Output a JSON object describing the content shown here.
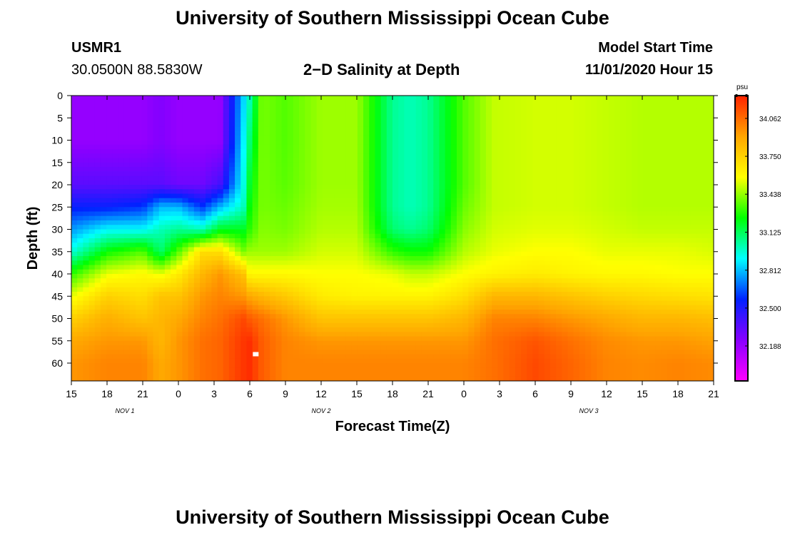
{
  "header": {
    "title": "University of Southern Mississippi Ocean Cube",
    "station_id": "USMR1",
    "coords": "30.0500N 88.5830W",
    "subtitle": "2−D Salinity at Depth",
    "model_start_label": "Model Start Time",
    "model_start_value": "11/01/2020 Hour 15"
  },
  "footer": {
    "title": "University of Southern Mississippi Ocean Cube"
  },
  "chart_data": {
    "type": "heatmap",
    "title": "2−D Salinity at Depth",
    "xlabel": "Forecast Time(Z)",
    "ylabel": "Depth (ft)",
    "x_range_hours": [
      0,
      54
    ],
    "x_tick_labels": [
      "15",
      "18",
      "21",
      "0",
      "3",
      "6",
      "9",
      "12",
      "15",
      "18",
      "21",
      "0",
      "3",
      "6",
      "9",
      "12",
      "15",
      "18",
      "21"
    ],
    "day_labels": [
      {
        "label": "NOV 1",
        "hour": 4.5
      },
      {
        "label": "NOV 2",
        "hour": 21
      },
      {
        "label": "NOV 3",
        "hour": 43.5
      }
    ],
    "y_ticks": [
      0,
      5,
      10,
      15,
      20,
      25,
      30,
      35,
      40,
      45,
      50,
      55,
      60
    ],
    "y_range": [
      0,
      64
    ],
    "colorbar": {
      "unit": "psu",
      "min": 31.9,
      "max": 34.25,
      "ticks": [
        "34.062",
        "33.750",
        "33.438",
        "33.125",
        "32.812",
        "32.500",
        "32.188"
      ],
      "tick_values": [
        34.062,
        33.75,
        33.438,
        33.125,
        32.812,
        32.5,
        32.188
      ],
      "colors": [
        "#ff00ff",
        "#8800ff",
        "#0022ff",
        "#00ffff",
        "#00ff00",
        "#ffff00",
        "#ffa500",
        "#ff2200"
      ]
    },
    "columns_hours": [
      0,
      3,
      6,
      7.5,
      9,
      11,
      12.5,
      14.5,
      15,
      16,
      18,
      21,
      24,
      27,
      28.5,
      30,
      33,
      35.5,
      39,
      42,
      45,
      48,
      51,
      54
    ],
    "depth_levels_ft": [
      0,
      10,
      20,
      25,
      30,
      35,
      40,
      45,
      50,
      55,
      60,
      64
    ],
    "salinity_psu": [
      [
        32.2,
        32.2,
        32.35,
        32.55,
        32.75,
        32.95,
        33.3,
        33.55,
        33.75,
        33.9,
        33.95,
        33.95
      ],
      [
        32.2,
        32.2,
        32.35,
        32.55,
        32.9,
        33.25,
        33.55,
        33.75,
        33.88,
        33.95,
        34.0,
        34.0
      ],
      [
        32.2,
        32.2,
        32.35,
        32.6,
        32.9,
        33.35,
        33.6,
        33.7,
        33.8,
        33.95,
        34.0,
        34.0
      ],
      [
        32.25,
        32.25,
        32.35,
        32.8,
        33.0,
        33.1,
        33.55,
        33.8,
        33.85,
        33.85,
        33.9,
        33.9
      ],
      [
        32.2,
        32.2,
        32.3,
        32.8,
        33.05,
        33.35,
        33.65,
        33.8,
        33.9,
        33.95,
        33.95,
        33.95
      ],
      [
        32.2,
        32.2,
        32.3,
        32.6,
        33.0,
        33.7,
        33.85,
        33.95,
        34.0,
        34.05,
        34.05,
        34.05
      ],
      [
        32.2,
        32.2,
        32.4,
        32.8,
        33.2,
        33.7,
        33.95,
        34.0,
        34.05,
        34.08,
        34.08,
        34.08
      ],
      [
        32.85,
        32.9,
        32.95,
        33.0,
        33.2,
        33.4,
        33.8,
        33.95,
        34.15,
        34.2,
        34.2,
        34.2
      ],
      [
        33.0,
        33.1,
        33.2,
        33.25,
        33.3,
        33.45,
        33.6,
        33.9,
        34.1,
        34.22,
        34.22,
        34.22
      ],
      [
        33.4,
        33.4,
        33.4,
        33.4,
        33.42,
        33.45,
        33.6,
        33.85,
        34.05,
        34.1,
        34.1,
        34.1
      ],
      [
        33.35,
        33.35,
        33.36,
        33.38,
        33.4,
        33.45,
        33.6,
        33.78,
        33.95,
        34.0,
        34.0,
        34.0
      ],
      [
        33.45,
        33.45,
        33.45,
        33.46,
        33.48,
        33.52,
        33.58,
        33.65,
        33.8,
        33.95,
        34.0,
        34.0
      ],
      [
        33.45,
        33.45,
        33.45,
        33.46,
        33.48,
        33.52,
        33.58,
        33.62,
        33.8,
        33.95,
        34.0,
        34.0
      ],
      [
        33.05,
        33.05,
        33.05,
        33.05,
        33.1,
        33.3,
        33.55,
        33.62,
        33.8,
        33.95,
        34.0,
        34.0
      ],
      [
        33.0,
        33.0,
        33.0,
        33.0,
        33.05,
        33.25,
        33.5,
        33.62,
        33.8,
        33.95,
        34.0,
        34.0
      ],
      [
        33.05,
        33.05,
        33.05,
        33.05,
        33.1,
        33.25,
        33.5,
        33.62,
        33.8,
        33.95,
        34.0,
        34.0
      ],
      [
        33.35,
        33.35,
        33.35,
        33.38,
        33.42,
        33.48,
        33.58,
        33.7,
        33.85,
        33.95,
        34.0,
        34.0
      ],
      [
        33.5,
        33.5,
        33.5,
        33.5,
        33.52,
        33.55,
        33.62,
        33.85,
        34.0,
        34.05,
        34.05,
        34.05
      ],
      [
        33.52,
        33.52,
        33.52,
        33.52,
        33.54,
        33.58,
        33.65,
        33.85,
        34.0,
        34.12,
        34.15,
        34.15
      ],
      [
        33.52,
        33.52,
        33.52,
        33.52,
        33.54,
        33.58,
        33.62,
        33.8,
        33.95,
        34.05,
        34.08,
        34.08
      ],
      [
        33.5,
        33.5,
        33.5,
        33.5,
        33.52,
        33.55,
        33.6,
        33.75,
        33.9,
        33.98,
        34.0,
        34.0
      ],
      [
        33.48,
        33.48,
        33.48,
        33.48,
        33.5,
        33.55,
        33.6,
        33.72,
        33.85,
        33.95,
        33.98,
        33.98
      ],
      [
        33.48,
        33.48,
        33.48,
        33.48,
        33.5,
        33.55,
        33.58,
        33.7,
        33.85,
        33.95,
        34.0,
        34.0
      ],
      [
        33.48,
        33.48,
        33.48,
        33.48,
        33.5,
        33.53,
        33.58,
        33.68,
        33.82,
        33.92,
        33.98,
        33.98
      ]
    ],
    "marker": {
      "hour": 15.5,
      "depth_ft": 58,
      "color": "#ffffff"
    }
  }
}
